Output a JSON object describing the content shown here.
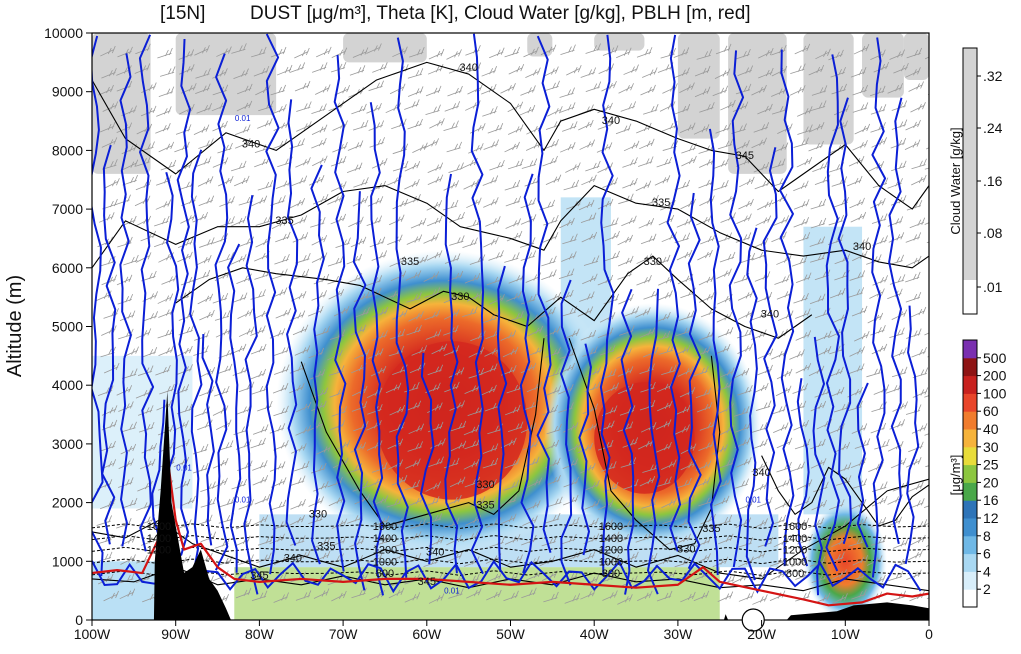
{
  "chart_data": {
    "type": "heatmap",
    "title": {
      "location": "[15N]",
      "variables": "DUST [μg/m³], Theta [K], Cloud Water [g/kg], PBLH [m, red]"
    },
    "ylabel": "Altitude (m)",
    "xlabel": "",
    "x_range": [
      -100,
      0
    ],
    "y_range": [
      0,
      10000
    ],
    "x_ticks": [
      {
        "v": -100,
        "label": "100W"
      },
      {
        "v": -90,
        "label": "90W"
      },
      {
        "v": -80,
        "label": "80W"
      },
      {
        "v": -70,
        "label": "70W"
      },
      {
        "v": -60,
        "label": "60W"
      },
      {
        "v": -50,
        "label": "50W"
      },
      {
        "v": -40,
        "label": "40W"
      },
      {
        "v": -30,
        "label": "30W"
      },
      {
        "v": -20,
        "label": "20W"
      },
      {
        "v": -10,
        "label": "10W"
      },
      {
        "v": 0,
        "label": "0"
      }
    ],
    "y_ticks": [
      "0",
      "1000",
      "2000",
      "3000",
      "4000",
      "5000",
      "6000",
      "7000",
      "8000",
      "9000",
      "10000"
    ],
    "dust_colorbar": {
      "label": "[μg/m³]",
      "levels": [
        "2",
        "4",
        "6",
        "8",
        "12",
        "16",
        "20",
        "25",
        "30",
        "40",
        "60",
        "100",
        "200",
        "500"
      ],
      "colors": [
        "#ffffff",
        "#d8eefa",
        "#a9d8f2",
        "#6fb8e6",
        "#3f8fcf",
        "#2e74b8",
        "#4aa84a",
        "#8cc63f",
        "#e8dc3a",
        "#f6b33b",
        "#f07c2d",
        "#e8452a",
        "#c8211e",
        "#8e1414",
        "#7a2fb0"
      ]
    },
    "cloud_colorbar": {
      "label": "Cloud Water [g/kg]",
      "levels": [
        ".01",
        ".08",
        ".16",
        ".24",
        ".32"
      ],
      "color": "#d3d3d3"
    },
    "dust_plumes": [
      {
        "lon": -57,
        "z": 3400,
        "max": 150
      },
      {
        "lon": -33,
        "z": 3000,
        "max": 120
      },
      {
        "lon": -10,
        "z": 1000,
        "max": 60
      }
    ],
    "theta_contour_labels": [
      {
        "lon": -81,
        "z": 8050,
        "text": "340"
      },
      {
        "lon": -77,
        "z": 6750,
        "text": "335"
      },
      {
        "lon": -55,
        "z": 9350,
        "text": "340"
      },
      {
        "lon": -62,
        "z": 6050,
        "text": "335"
      },
      {
        "lon": -56,
        "z": 5450,
        "text": "330"
      },
      {
        "lon": -38,
        "z": 8450,
        "text": "340"
      },
      {
        "lon": -32,
        "z": 7050,
        "text": "335"
      },
      {
        "lon": -33,
        "z": 6050,
        "text": "330"
      },
      {
        "lon": -22,
        "z": 7850,
        "text": "345"
      },
      {
        "lon": -19,
        "z": 5150,
        "text": "340"
      },
      {
        "lon": -8,
        "z": 6300,
        "text": "340"
      },
      {
        "lon": -53,
        "z": 2250,
        "text": "330"
      },
      {
        "lon": -53,
        "z": 1900,
        "text": "335"
      },
      {
        "lon": -73,
        "z": 1750,
        "text": "330"
      },
      {
        "lon": -72,
        "z": 1200,
        "text": "335"
      },
      {
        "lon": -76,
        "z": 1000,
        "text": "340"
      },
      {
        "lon": -59,
        "z": 1100,
        "text": "340"
      },
      {
        "lon": -80,
        "z": 700,
        "text": "345"
      },
      {
        "lon": -60,
        "z": 600,
        "text": "345"
      },
      {
        "lon": -20,
        "z": 2450,
        "text": "340"
      },
      {
        "lon": -29,
        "z": 1150,
        "text": "330"
      },
      {
        "lon": -26,
        "z": 1500,
        "text": "335"
      }
    ],
    "pressure_labels": [
      {
        "lon": -92,
        "z": 1600,
        "text": "1600"
      },
      {
        "lon": -92,
        "z": 1400,
        "text": "1400"
      },
      {
        "lon": -92,
        "z": 1200,
        "text": "1200"
      },
      {
        "lon": -65,
        "z": 1600,
        "text": "1600"
      },
      {
        "lon": -65,
        "z": 1400,
        "text": "1400"
      },
      {
        "lon": -65,
        "z": 1200,
        "text": "1200"
      },
      {
        "lon": -65,
        "z": 1000,
        "text": "1000"
      },
      {
        "lon": -65,
        "z": 800,
        "text": "800"
      },
      {
        "lon": -38,
        "z": 1600,
        "text": "1600"
      },
      {
        "lon": -38,
        "z": 1400,
        "text": "1400"
      },
      {
        "lon": -38,
        "z": 1200,
        "text": "1200"
      },
      {
        "lon": -38,
        "z": 1000,
        "text": "1000"
      },
      {
        "lon": -38,
        "z": 800,
        "text": "800"
      },
      {
        "lon": -16,
        "z": 1600,
        "text": "1600"
      },
      {
        "lon": -16,
        "z": 1400,
        "text": "1400"
      },
      {
        "lon": -16,
        "z": 1200,
        "text": "1200"
      },
      {
        "lon": -16,
        "z": 1000,
        "text": "1000"
      },
      {
        "lon": -16,
        "z": 800,
        "text": "800"
      }
    ],
    "cloud_labels": [
      {
        "lon": -82,
        "z": 8500,
        "text": "0.01"
      },
      {
        "lon": -89,
        "z": 2550,
        "text": "0.01"
      },
      {
        "lon": -82,
        "z": 2000,
        "text": "0.01"
      },
      {
        "lon": -21,
        "z": 2000,
        "text": "0.01"
      },
      {
        "lon": -57,
        "z": 450,
        "text": "0.01"
      }
    ],
    "pblh": [
      {
        "lon": -100,
        "z": 800
      },
      {
        "lon": -97,
        "z": 850
      },
      {
        "lon": -94,
        "z": 800
      },
      {
        "lon": -92,
        "z": 1400
      },
      {
        "lon": -91,
        "z": 2800
      },
      {
        "lon": -90,
        "z": 1700
      },
      {
        "lon": -89,
        "z": 1200
      },
      {
        "lon": -87,
        "z": 1300
      },
      {
        "lon": -85,
        "z": 900
      },
      {
        "lon": -83,
        "z": 700
      },
      {
        "lon": -80,
        "z": 650
      },
      {
        "lon": -75,
        "z": 700
      },
      {
        "lon": -70,
        "z": 650
      },
      {
        "lon": -65,
        "z": 700
      },
      {
        "lon": -60,
        "z": 700
      },
      {
        "lon": -55,
        "z": 650
      },
      {
        "lon": -50,
        "z": 600
      },
      {
        "lon": -45,
        "z": 650
      },
      {
        "lon": -40,
        "z": 600
      },
      {
        "lon": -35,
        "z": 550
      },
      {
        "lon": -30,
        "z": 600
      },
      {
        "lon": -27,
        "z": 900
      },
      {
        "lon": -25,
        "z": 650
      },
      {
        "lon": -20,
        "z": 500
      },
      {
        "lon": -15,
        "z": 350
      },
      {
        "lon": -12,
        "z": 250
      },
      {
        "lon": -8,
        "z": 300
      },
      {
        "lon": -5,
        "z": 450
      },
      {
        "lon": -2,
        "z": 400
      },
      {
        "lon": 0,
        "z": 450
      }
    ],
    "terrain": [
      {
        "lon": -100,
        "z": 0
      },
      {
        "lon": -92.6,
        "z": 0
      },
      {
        "lon": -92.5,
        "z": 1000
      },
      {
        "lon": -91.8,
        "z": 2200
      },
      {
        "lon": -91,
        "z": 3900
      },
      {
        "lon": -90.5,
        "z": 2000
      },
      {
        "lon": -89.5,
        "z": 1200
      },
      {
        "lon": -89,
        "z": 800
      },
      {
        "lon": -88,
        "z": 900
      },
      {
        "lon": -87,
        "z": 1200
      },
      {
        "lon": -86,
        "z": 700
      },
      {
        "lon": -85,
        "z": 500
      },
      {
        "lon": -84,
        "z": 200
      },
      {
        "lon": -83.4,
        "z": 0
      },
      {
        "lon": -24.5,
        "z": 0
      },
      {
        "lon": -24.3,
        "z": 100
      },
      {
        "lon": -24,
        "z": 0
      },
      {
        "lon": -17,
        "z": 0
      },
      {
        "lon": -16.5,
        "z": 80
      },
      {
        "lon": -11,
        "z": 150
      },
      {
        "lon": -9,
        "z": 250
      },
      {
        "lon": -5,
        "z": 300
      },
      {
        "lon": -2,
        "z": 250
      },
      {
        "lon": 0,
        "z": 200
      }
    ],
    "marker": {
      "lon": -21,
      "z": 0
    },
    "grid": false
  }
}
